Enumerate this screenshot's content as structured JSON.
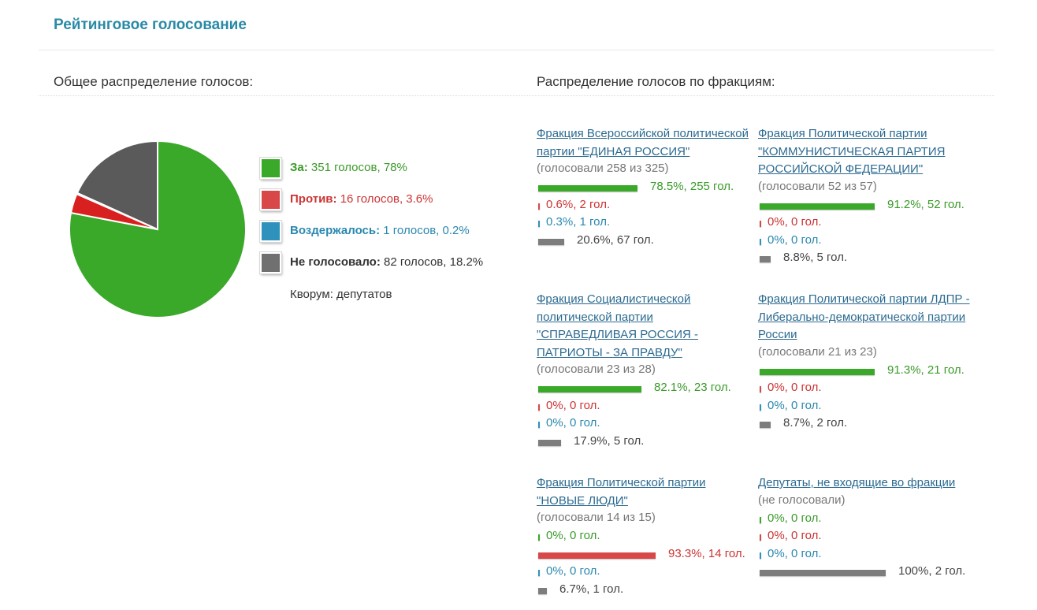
{
  "title": "Рейтинговое голосование",
  "overall_heading": "Общее распределение голосов:",
  "factions_heading": "Распределение голосов по фракциям:",
  "colors": {
    "for": "#3aa829",
    "against": "#d94848",
    "abstain": "#2e92bd",
    "not_voted": "#606060",
    "title": "#2a8aa6",
    "link": "#2b6a90"
  },
  "chart_data": {
    "type": "pie",
    "slices": [
      {
        "label": "За",
        "votes": 351,
        "percent": 78
      },
      {
        "label": "Против",
        "votes": 16,
        "percent": 3.6
      },
      {
        "label": "Воздержалось",
        "votes": 1,
        "percent": 0.2
      },
      {
        "label": "Не голосовало",
        "votes": 82,
        "percent": 18.2
      }
    ]
  },
  "legend": [
    {
      "key": "for",
      "label": "За:",
      "value": " 351 голосов, 78%",
      "color": "#3aa829",
      "text_color": "#3a9a29"
    },
    {
      "key": "against",
      "label": "Против:",
      "value": " 16 голосов, 3.6%",
      "color": "#d94848",
      "text_color": "#cc3333"
    },
    {
      "key": "abstain",
      "label": "Воздержалось:",
      "value": " 1 голосов, 0.2%",
      "color": "#2e92bd",
      "text_color": "#2a88b0"
    },
    {
      "key": "not_voted",
      "label": "Не голосовало:",
      "value": " 82 голосов, 18.2%",
      "color": "#707070",
      "text_color": "#333333"
    }
  ],
  "quorum": "Кворум: депутатов",
  "factions": [
    {
      "name": "Фракция Всероссийской политической партии \"ЕДИНАЯ РОССИЯ\"",
      "count": "(голосовали 258 из 325)",
      "rows": [
        {
          "type": "green",
          "share": 0.785,
          "text": "78.5%, 255 гол."
        },
        {
          "type": "red",
          "share": 0.006,
          "text": "0.6%, 2 гол."
        },
        {
          "type": "blue",
          "share": 0.003,
          "text": "0.3%, 1 гол."
        },
        {
          "type": "gray",
          "share": 0.206,
          "text": "20.6%, 67 гол."
        }
      ]
    },
    {
      "name": "Фракция Политической партии \"КОММУНИСТИЧЕСКАЯ ПАРТИЯ РОССИЙСКОЙ ФЕДЕРАЦИИ\"",
      "count": "(голосовали 52 из 57)",
      "rows": [
        {
          "type": "green",
          "share": 0.912,
          "text": "91.2%, 52 гол."
        },
        {
          "type": "red",
          "share": 0,
          "text": "0%, 0 гол."
        },
        {
          "type": "blue",
          "share": 0,
          "text": "0%, 0 гол."
        },
        {
          "type": "gray",
          "share": 0.088,
          "text": "8.8%, 5 гол."
        }
      ]
    },
    {
      "name": "Фракция Социалистической политической партии \"СПРАВЕДЛИВАЯ РОССИЯ - ПАТРИОТЫ - ЗА ПРАВДУ\"",
      "count": "(голосовали 23 из 28)",
      "rows": [
        {
          "type": "green",
          "share": 0.821,
          "text": "82.1%, 23 гол."
        },
        {
          "type": "red",
          "share": 0,
          "text": "0%, 0 гол."
        },
        {
          "type": "blue",
          "share": 0,
          "text": "0%, 0 гол."
        },
        {
          "type": "gray",
          "share": 0.179,
          "text": "17.9%, 5 гол."
        }
      ]
    },
    {
      "name": "Фракция Политической партии ЛДПР - Либерально-демократической партии России",
      "count": "(голосовали 21 из 23)",
      "rows": [
        {
          "type": "green",
          "share": 0.913,
          "text": "91.3%, 21 гол."
        },
        {
          "type": "red",
          "share": 0,
          "text": "0%, 0 гол."
        },
        {
          "type": "blue",
          "share": 0,
          "text": "0%, 0 гол."
        },
        {
          "type": "gray",
          "share": 0.087,
          "text": "8.7%, 2 гол."
        }
      ]
    },
    {
      "name": "Фракция Политической партии \"НОВЫЕ ЛЮДИ\"",
      "count": "(голосовали 14 из 15)",
      "rows": [
        {
          "type": "green",
          "share": 0,
          "text": "0%, 0 гол."
        },
        {
          "type": "red",
          "share": 0.933,
          "text": "93.3%, 14 гол."
        },
        {
          "type": "blue",
          "share": 0,
          "text": "0%, 0 гол."
        },
        {
          "type": "gray",
          "share": 0.067,
          "text": "6.7%, 1 гол."
        }
      ]
    },
    {
      "name": "Депутаты, не входящие во фракции",
      "count": "(не голосовали)",
      "rows": [
        {
          "type": "green",
          "share": 0,
          "text": "0%, 0 гол."
        },
        {
          "type": "red",
          "share": 0,
          "text": "0%, 0 гол."
        },
        {
          "type": "blue",
          "share": 0,
          "text": "0%, 0 гол."
        },
        {
          "type": "gray",
          "share": 1,
          "text": "100%, 2 гол."
        }
      ]
    }
  ]
}
